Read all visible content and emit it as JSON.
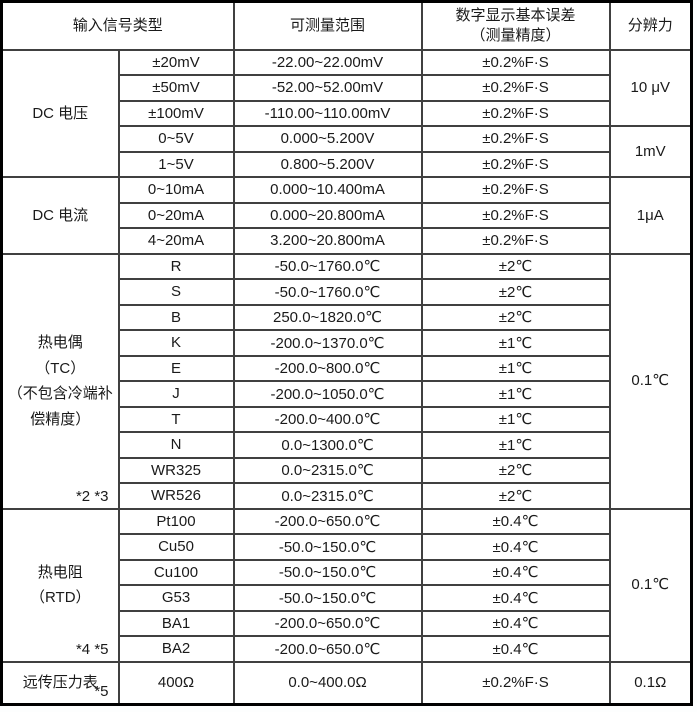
{
  "colors": {
    "header_bg": "#bee2ec",
    "cell_bg": "#ffffff",
    "inner_border": "#404040",
    "outer_border": "#000000",
    "text": "#1a1a1a",
    "page_bg": "#fdfefe"
  },
  "header": {
    "col_signal_type": "输入信号类型",
    "col_range": "可测量范围",
    "col_error_line1": "数字显示基本误差",
    "col_error_line2": "（测量精度）",
    "col_resolution": "分辨力"
  },
  "sections": [
    {
      "category_lines": [
        "DC 电压"
      ],
      "note": "",
      "tall": false,
      "rows": [
        {
          "subtype": "±20mV",
          "range": "-22.00~22.00mV",
          "error": "±0.2%F·S"
        },
        {
          "subtype": "±50mV",
          "range": "-52.00~52.00mV",
          "error": "±0.2%F·S"
        },
        {
          "subtype": "±100mV",
          "range": "-110.00~110.00mV",
          "error": "±0.2%F·S"
        },
        {
          "subtype": "0~5V",
          "range": "0.000~5.200V",
          "error": "±0.2%F·S"
        },
        {
          "subtype": "1~5V",
          "range": "0.800~5.200V",
          "error": "±0.2%F·S"
        }
      ],
      "resolutions": [
        {
          "label": "10 μV",
          "span": 3
        },
        {
          "label": "1mV",
          "span": 2
        }
      ]
    },
    {
      "category_lines": [
        "DC 电流"
      ],
      "note": "",
      "tall": false,
      "rows": [
        {
          "subtype": "0~10mA",
          "range": "0.000~10.400mA",
          "error": "±0.2%F·S"
        },
        {
          "subtype": "0~20mA",
          "range": "0.000~20.800mA",
          "error": "±0.2%F·S"
        },
        {
          "subtype": "4~20mA",
          "range": "3.200~20.800mA",
          "error": "±0.2%F·S"
        }
      ],
      "resolutions": [
        {
          "label": "1μA",
          "span": 3
        }
      ]
    },
    {
      "category_lines": [
        "热电偶",
        "（TC）",
        "（不包含冷端补",
        "偿精度）"
      ],
      "note": "*2  *3",
      "tall": false,
      "rows": [
        {
          "subtype": "R",
          "range": "-50.0~1760.0℃",
          "error": "±2℃"
        },
        {
          "subtype": "S",
          "range": "-50.0~1760.0℃",
          "error": "±2℃"
        },
        {
          "subtype": "B",
          "range": "250.0~1820.0℃",
          "error": "±2℃"
        },
        {
          "subtype": "K",
          "range": "-200.0~1370.0℃",
          "error": "±1℃"
        },
        {
          "subtype": "E",
          "range": "-200.0~800.0℃",
          "error": "±1℃"
        },
        {
          "subtype": "J",
          "range": "-200.0~1050.0℃",
          "error": "±1℃"
        },
        {
          "subtype": "T",
          "range": "-200.0~400.0℃",
          "error": "±1℃"
        },
        {
          "subtype": "N",
          "range": "0.0~1300.0℃",
          "error": "±1℃"
        },
        {
          "subtype": "WR325",
          "range": "0.0~2315.0℃",
          "error": "±2℃"
        },
        {
          "subtype": "WR526",
          "range": "0.0~2315.0℃",
          "error": "±2℃"
        }
      ],
      "resolutions": [
        {
          "label": "0.1℃",
          "span": 10
        }
      ]
    },
    {
      "category_lines": [
        "热电阻",
        "（RTD）"
      ],
      "note": "*4  *5",
      "tall": false,
      "rows": [
        {
          "subtype": "Pt100",
          "range": "-200.0~650.0℃",
          "error": "±0.4℃"
        },
        {
          "subtype": "Cu50",
          "range": "-50.0~150.0℃",
          "error": "±0.4℃"
        },
        {
          "subtype": "Cu100",
          "range": "-50.0~150.0℃",
          "error": "±0.4℃"
        },
        {
          "subtype": "G53",
          "range": "-50.0~150.0℃",
          "error": "±0.4℃"
        },
        {
          "subtype": "BA1",
          "range": "-200.0~650.0℃",
          "error": "±0.4℃"
        },
        {
          "subtype": "BA2",
          "range": "-200.0~650.0℃",
          "error": "±0.4℃"
        }
      ],
      "resolutions": [
        {
          "label": "0.1℃",
          "span": 6
        }
      ]
    },
    {
      "category_lines": [
        "远传压力表"
      ],
      "note": "*5",
      "tall": true,
      "rows": [
        {
          "subtype": "400Ω",
          "range": "0.0~400.0Ω",
          "error": "±0.2%F·S"
        }
      ],
      "resolutions": [
        {
          "label": "0.1Ω",
          "span": 1
        }
      ]
    }
  ]
}
